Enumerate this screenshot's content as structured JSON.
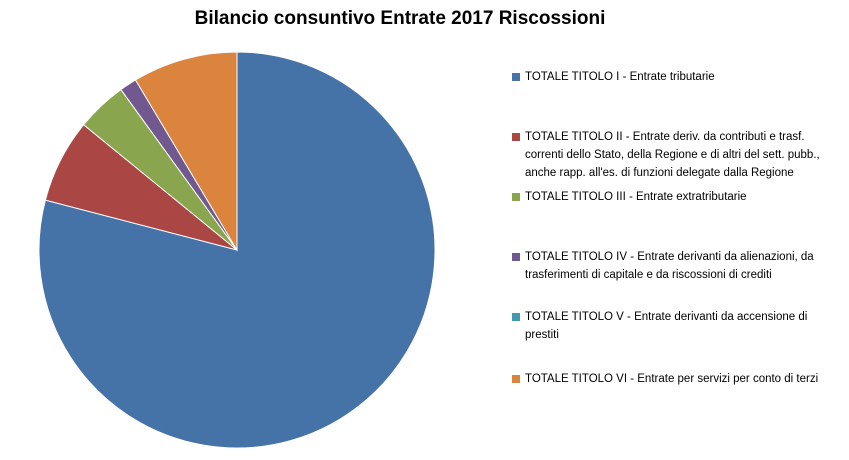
{
  "chart_data": {
    "type": "pie",
    "title": "Bilancio consuntivo Entrate 2017 Riscossioni",
    "legend_position": "right",
    "slices": [
      {
        "label": "TOTALE TITOLO I - Entrate tributarie",
        "value": 78.5,
        "color": "#4572A7"
      },
      {
        "label": "TOTALE TITOLO II - Entrate deriv. da contributi e trasf. correnti dello Stato, della Regione e di altri del sett. pubb., anche rapp. all'es. di funzioni delegate dalla Regione",
        "value": 6.8,
        "color": "#AA4643"
      },
      {
        "label": "TOTALE TITOLO III - Entrate extratributarie",
        "value": 4.1,
        "color": "#89A54E"
      },
      {
        "label": "TOTALE TITOLO IV - Entrate derivanti da alienazioni, da trasferimenti di capitale e da riscossioni di crediti",
        "value": 1.4,
        "color": "#71588F"
      },
      {
        "label": "TOTALE TITOLO V - Entrate derivanti da accensione di prestiti",
        "value": 0.0,
        "color": "#4198AF"
      },
      {
        "label": "TOTALE TITOLO VI - Entrate per servizi per conto di terzi",
        "value": 8.5,
        "color": "#DB843D"
      }
    ]
  }
}
